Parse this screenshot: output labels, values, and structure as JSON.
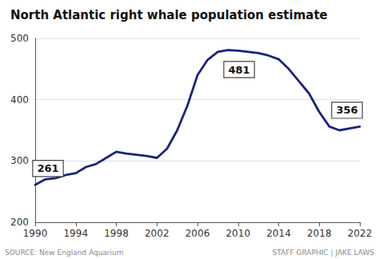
{
  "chart_data": {
    "type": "line",
    "title": "North Atlantic right whale population estimate",
    "x": [
      1990,
      1991,
      1992,
      1993,
      1994,
      1995,
      1996,
      1997,
      1998,
      1999,
      2000,
      2001,
      2002,
      2003,
      2004,
      2005,
      2006,
      2007,
      2008,
      2009,
      2010,
      2011,
      2012,
      2013,
      2014,
      2015,
      2016,
      2017,
      2018,
      2019,
      2020,
      2021,
      2022
    ],
    "values": [
      261,
      270,
      272,
      277,
      280,
      290,
      295,
      305,
      315,
      312,
      310,
      308,
      305,
      320,
      350,
      390,
      440,
      465,
      478,
      481,
      480,
      478,
      476,
      472,
      466,
      450,
      430,
      410,
      380,
      356,
      350,
      353,
      356
    ],
    "color": "#1a237e",
    "xlim": [
      1990,
      2022
    ],
    "xticks": [
      1990,
      1994,
      1998,
      2002,
      2006,
      2010,
      2014,
      2018,
      2022
    ],
    "ylim": [
      200,
      500
    ],
    "yticks": [
      200,
      300,
      400,
      500
    ],
    "grid": true,
    "annotations": [
      {
        "x": 1990,
        "value": 261,
        "label": "261"
      },
      {
        "x": 2009,
        "value": 481,
        "label": "481"
      },
      {
        "x": 2022,
        "value": 356,
        "label": "356"
      }
    ],
    "footnotes": [
      "SOURCE: New England Aquarium",
      "STAFF GRAPHIC | JAKE LAWS"
    ]
  }
}
